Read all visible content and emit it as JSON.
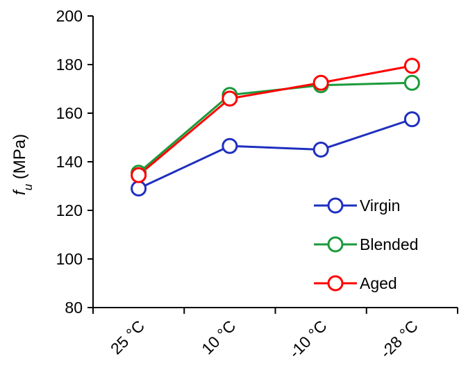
{
  "chart_data": {
    "type": "line",
    "categories": [
      "25 °C",
      "10 °C",
      "-10 °C",
      "-28 °C"
    ],
    "series": [
      {
        "name": "Virgin",
        "color": "#1f2fbf",
        "values": [
          129,
          146.5,
          145,
          157.5
        ]
      },
      {
        "name": "Blended",
        "color": "#1a9a3a",
        "values": [
          135.5,
          167.5,
          171.5,
          172.5
        ]
      },
      {
        "name": "Aged",
        "color": "#ff0000",
        "values": [
          134.5,
          166,
          172.5,
          179.5
        ]
      }
    ],
    "ylabel_symbol": "f",
    "ylabel_subscript": "u",
    "ylabel_unit": " (MPa)",
    "ylim": [
      80,
      200
    ],
    "yticks": [
      "80",
      "100",
      "120",
      "140",
      "160",
      "180",
      "200"
    ],
    "grid": false,
    "legend_position": "bottom-right"
  }
}
